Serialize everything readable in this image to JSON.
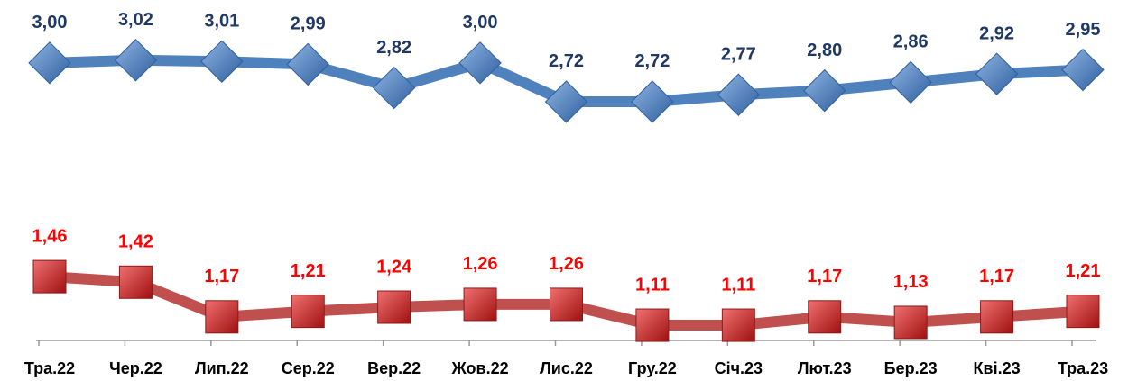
{
  "chart_data": {
    "type": "line",
    "categories": [
      "Тра.22",
      "Чер.22",
      "Лип.22",
      "Сер.22",
      "Вер.22",
      "Жов.22",
      "Лис.22",
      "Гру.22",
      "Січ.23",
      "Лют.23",
      "Бер.23",
      "Кві.23",
      "Тра.23"
    ],
    "series": [
      {
        "color": "#4f81bd",
        "marker": "diamond",
        "label_color": "#1f3864",
        "values": [
          3.0,
          3.02,
          3.01,
          2.99,
          2.82,
          3.0,
          2.72,
          2.72,
          2.77,
          2.8,
          2.86,
          2.92,
          2.95
        ],
        "value_labels": [
          "3,00",
          "3,02",
          "3,01",
          "2,99",
          "2,82",
          "3,00",
          "2,72",
          "2,72",
          "2,77",
          "2,80",
          "2,86",
          "2,92",
          "2,95"
        ]
      },
      {
        "color": "#c0504d",
        "marker": "square",
        "label_color": "#ff0000",
        "values": [
          1.46,
          1.42,
          1.17,
          1.21,
          1.24,
          1.26,
          1.26,
          1.11,
          1.11,
          1.17,
          1.13,
          1.17,
          1.21
        ],
        "value_labels": [
          "1,46",
          "1,42",
          "1,17",
          "1,21",
          "1,24",
          "1,26",
          "1,26",
          "1,11",
          "1,11",
          "1,17",
          "1,13",
          "1,17",
          "1,21"
        ]
      }
    ],
    "ylim": [
      1.0,
      3.2
    ]
  }
}
